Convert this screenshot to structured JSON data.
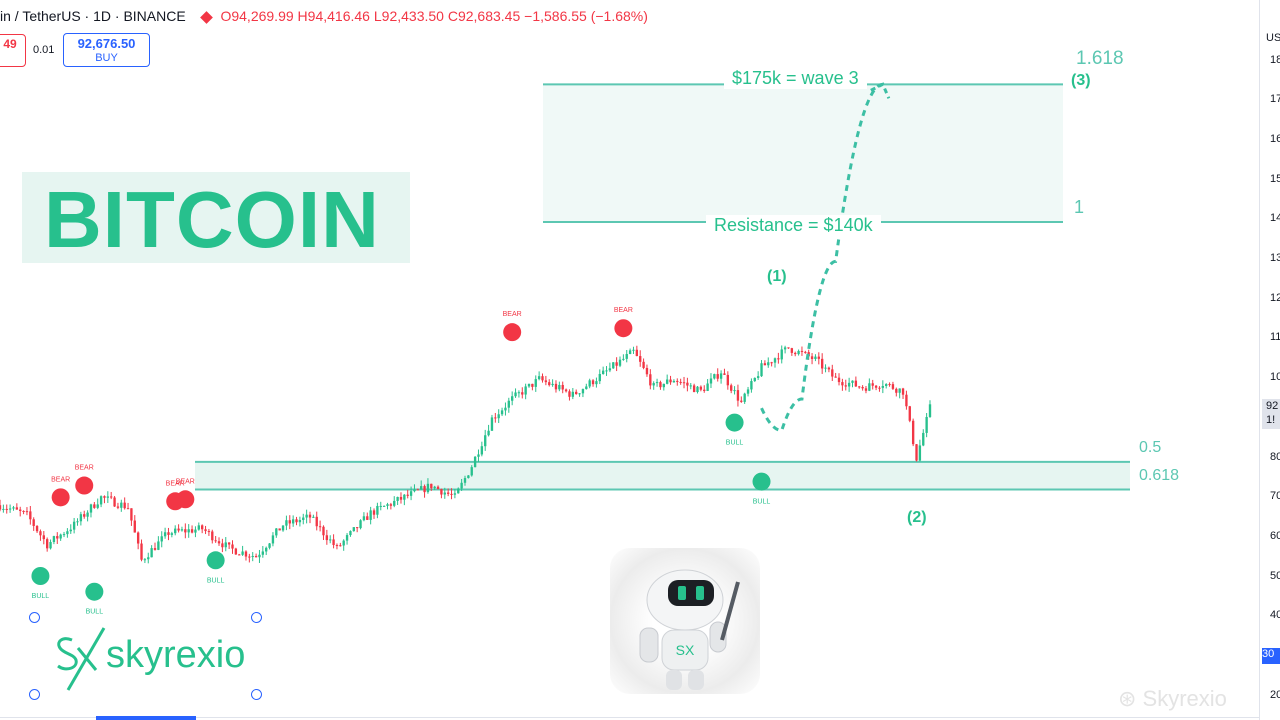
{
  "header": {
    "symbol": "in / TetherUS · 1D · BINANCE",
    "ohlc": [
      {
        "label": "O",
        "value": "94,269.99"
      },
      {
        "label": "H",
        "value": "94,416.46"
      },
      {
        "label": "L",
        "value": "92,433.50"
      },
      {
        "label": "C",
        "value": "92,683.45"
      }
    ],
    "change": "−1,586.55 (−1.68%)",
    "sell_price": "49",
    "spread": "0.01",
    "buy_price": "92,676.50",
    "buy_label": "BUY"
  },
  "overlay": {
    "title": "BITCOIN",
    "brand": "skyrexio",
    "watermark": "Skyrexio"
  },
  "price_axis": {
    "currency": "US",
    "ticks": [
      "18",
      "17",
      "16",
      "15",
      "14",
      "13",
      "12",
      "11",
      "10",
      "80",
      "70",
      "60",
      "50",
      "40",
      "30",
      "20"
    ],
    "current_price": "92",
    "countdown": "1!",
    "marker": "30"
  },
  "colors": {
    "bull": "#27c08d",
    "bear": "#f23645",
    "accent": "#2962ff",
    "zone": "#e6f5f1"
  },
  "chart_data": {
    "type": "candlestick",
    "title": "BITCOIN",
    "series_pattern": [
      {
        "x": 0,
        "y": 68000
      },
      {
        "x": 8,
        "y": 65500
      },
      {
        "x": 14,
        "y": 58000
      },
      {
        "x": 22,
        "y": 63000
      },
      {
        "x": 30,
        "y": 70000
      },
      {
        "x": 38,
        "y": 67500
      },
      {
        "x": 42,
        "y": 54000
      },
      {
        "x": 50,
        "y": 61000
      },
      {
        "x": 60,
        "y": 62000
      },
      {
        "x": 68,
        "y": 57000
      },
      {
        "x": 76,
        "y": 55000
      },
      {
        "x": 84,
        "y": 63000
      },
      {
        "x": 92,
        "y": 65000
      },
      {
        "x": 100,
        "y": 57000
      },
      {
        "x": 110,
        "y": 66000
      },
      {
        "x": 120,
        "y": 70000
      },
      {
        "x": 128,
        "y": 73000
      },
      {
        "x": 135,
        "y": 70000
      },
      {
        "x": 140,
        "y": 78000
      },
      {
        "x": 146,
        "y": 90000
      },
      {
        "x": 152,
        "y": 95000
      },
      {
        "x": 160,
        "y": 100000
      },
      {
        "x": 170,
        "y": 96000
      },
      {
        "x": 180,
        "y": 102000
      },
      {
        "x": 188,
        "y": 107000
      },
      {
        "x": 194,
        "y": 98000
      },
      {
        "x": 200,
        "y": 100000
      },
      {
        "x": 208,
        "y": 97000
      },
      {
        "x": 214,
        "y": 102000
      },
      {
        "x": 220,
        "y": 94000
      },
      {
        "x": 226,
        "y": 103000
      },
      {
        "x": 234,
        "y": 108000
      },
      {
        "x": 242,
        "y": 105000
      },
      {
        "x": 248,
        "y": 100000
      },
      {
        "x": 256,
        "y": 98000
      },
      {
        "x": 262,
        "y": 99000
      },
      {
        "x": 268,
        "y": 97000
      },
      {
        "x": 272,
        "y": 80000
      },
      {
        "x": 276,
        "y": 92683
      }
    ],
    "levels": [
      {
        "label": "$175k = wave 3",
        "fib": "1.618",
        "y": 175000
      },
      {
        "label": "Resistance = $140k",
        "fib": "1",
        "y": 140000
      }
    ],
    "support_zone": {
      "fib_top": "0.5",
      "fib_bottom": "0.618",
      "y_top": 79000,
      "y_bottom": 72000
    },
    "signals": [
      {
        "type": "BULL",
        "x": 12,
        "y": 50000
      },
      {
        "type": "BEAR",
        "x": 18,
        "y": 70000
      },
      {
        "type": "BEAR",
        "x": 25,
        "y": 73000
      },
      {
        "type": "BULL",
        "x": 28,
        "y": 46000
      },
      {
        "type": "BEAR",
        "x": 52,
        "y": 69000
      },
      {
        "type": "BEAR",
        "x": 55,
        "y": 69500
      },
      {
        "type": "BULL",
        "x": 64,
        "y": 54000
      },
      {
        "type": "BEAR",
        "x": 152,
        "y": 112000
      },
      {
        "type": "BEAR",
        "x": 185,
        "y": 113000
      },
      {
        "type": "BULL",
        "x": 218,
        "y": 89000
      },
      {
        "type": "BULL",
        "x": 226,
        "y": 74000
      }
    ],
    "wave_labels": [
      {
        "label": "(1)",
        "x": 186,
        "y": 120000
      },
      {
        "label": "(2)",
        "x": 226,
        "y": 67000
      },
      {
        "label": "(3)",
        "x": 272,
        "y": 175000
      }
    ],
    "projection": [
      {
        "x": 226,
        "y": 92683
      },
      {
        "x": 232,
        "y": 87000
      },
      {
        "x": 238,
        "y": 95000
      },
      {
        "x": 248,
        "y": 130000
      },
      {
        "x": 262,
        "y": 175000
      }
    ]
  }
}
